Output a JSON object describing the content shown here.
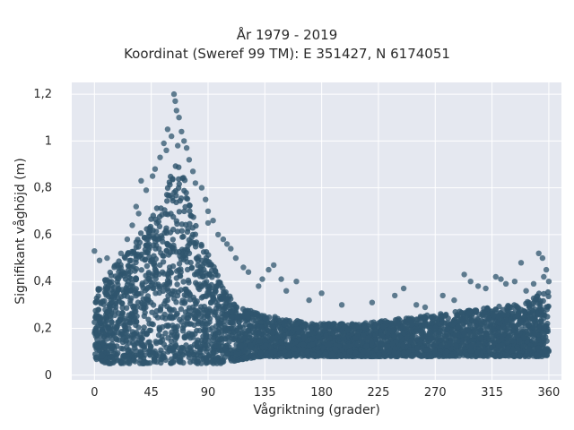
{
  "chart_data": {
    "type": "scatter",
    "title_line1": "År 1979 - 2019",
    "title_line2": "Koordinat (Sweref 99 TM): E 351427, N 6174051",
    "xlabel": "Vågriktning (grader)",
    "ylabel": "Signifikant våghöjd (m)",
    "xlim": [
      -18,
      370
    ],
    "ylim": [
      -0.02,
      1.25
    ],
    "x_ticks": [
      0,
      45,
      90,
      135,
      180,
      225,
      270,
      315,
      360
    ],
    "x_tick_labels": [
      "0",
      "45",
      "90",
      "135",
      "180",
      "225",
      "270",
      "315",
      "360"
    ],
    "y_ticks": [
      0,
      0.2,
      0.4,
      0.6,
      0.8,
      1.0,
      1.2
    ],
    "y_tick_labels": [
      "0",
      "0,2",
      "0,4",
      "0,6",
      "0,8",
      "1",
      "1,2"
    ],
    "grid": true,
    "marker_color": "#2f566e",
    "background_color": "#e5e8f0",
    "envelope_x": [
      0,
      5,
      10,
      20,
      30,
      40,
      50,
      55,
      60,
      65,
      70,
      75,
      80,
      85,
      90,
      95,
      100,
      105,
      110,
      120,
      135,
      150,
      180,
      210,
      240,
      270,
      300,
      330,
      345,
      350,
      355,
      360
    ],
    "envelope_ymin": [
      0.07,
      0.06,
      0.05,
      0.05,
      0.05,
      0.05,
      0.05,
      0.05,
      0.05,
      0.05,
      0.05,
      0.05,
      0.05,
      0.05,
      0.05,
      0.05,
      0.05,
      0.06,
      0.06,
      0.07,
      0.08,
      0.08,
      0.08,
      0.08,
      0.08,
      0.08,
      0.08,
      0.08,
      0.08,
      0.08,
      0.08,
      0.08
    ],
    "envelope_ymax": [
      0.38,
      0.4,
      0.42,
      0.5,
      0.56,
      0.65,
      0.72,
      0.78,
      0.85,
      0.9,
      0.88,
      0.76,
      0.65,
      0.58,
      0.52,
      0.46,
      0.4,
      0.35,
      0.32,
      0.28,
      0.26,
      0.24,
      0.22,
      0.22,
      0.24,
      0.26,
      0.28,
      0.3,
      0.32,
      0.34,
      0.36,
      0.36
    ],
    "outliers": [
      {
        "x": 63,
        "y": 1.2
      },
      {
        "x": 64,
        "y": 1.17
      },
      {
        "x": 65,
        "y": 1.13
      },
      {
        "x": 67,
        "y": 1.1
      },
      {
        "x": 58,
        "y": 1.05
      },
      {
        "x": 69,
        "y": 1.04
      },
      {
        "x": 61,
        "y": 1.02
      },
      {
        "x": 71,
        "y": 1.0
      },
      {
        "x": 55,
        "y": 0.99
      },
      {
        "x": 66,
        "y": 0.98
      },
      {
        "x": 73,
        "y": 0.97
      },
      {
        "x": 57,
        "y": 0.96
      },
      {
        "x": 52,
        "y": 0.93
      },
      {
        "x": 75,
        "y": 0.92
      },
      {
        "x": 48,
        "y": 0.88
      },
      {
        "x": 78,
        "y": 0.87
      },
      {
        "x": 46,
        "y": 0.85
      },
      {
        "x": 37,
        "y": 0.83
      },
      {
        "x": 80,
        "y": 0.82
      },
      {
        "x": 85,
        "y": 0.8
      },
      {
        "x": 41,
        "y": 0.79
      },
      {
        "x": 88,
        "y": 0.75
      },
      {
        "x": 33,
        "y": 0.72
      },
      {
        "x": 90,
        "y": 0.7
      },
      {
        "x": 35,
        "y": 0.69
      },
      {
        "x": 94,
        "y": 0.66
      },
      {
        "x": 90,
        "y": 0.65
      },
      {
        "x": 30,
        "y": 0.64
      },
      {
        "x": 98,
        "y": 0.6
      },
      {
        "x": 102,
        "y": 0.58
      },
      {
        "x": 26,
        "y": 0.58
      },
      {
        "x": 105,
        "y": 0.56
      },
      {
        "x": 108,
        "y": 0.54
      },
      {
        "x": 21,
        "y": 0.52
      },
      {
        "x": 112,
        "y": 0.5
      },
      {
        "x": 10,
        "y": 0.5
      },
      {
        "x": 0,
        "y": 0.53
      },
      {
        "x": 4,
        "y": 0.49
      },
      {
        "x": 118,
        "y": 0.46
      },
      {
        "x": 122,
        "y": 0.44
      },
      {
        "x": 142,
        "y": 0.47
      },
      {
        "x": 138,
        "y": 0.45
      },
      {
        "x": 133,
        "y": 0.41
      },
      {
        "x": 148,
        "y": 0.41
      },
      {
        "x": 160,
        "y": 0.4
      },
      {
        "x": 130,
        "y": 0.38
      },
      {
        "x": 152,
        "y": 0.36
      },
      {
        "x": 180,
        "y": 0.35
      },
      {
        "x": 170,
        "y": 0.32
      },
      {
        "x": 196,
        "y": 0.3
      },
      {
        "x": 220,
        "y": 0.31
      },
      {
        "x": 245,
        "y": 0.37
      },
      {
        "x": 238,
        "y": 0.34
      },
      {
        "x": 255,
        "y": 0.3
      },
      {
        "x": 262,
        "y": 0.29
      },
      {
        "x": 276,
        "y": 0.34
      },
      {
        "x": 285,
        "y": 0.32
      },
      {
        "x": 293,
        "y": 0.43
      },
      {
        "x": 298,
        "y": 0.4
      },
      {
        "x": 304,
        "y": 0.38
      },
      {
        "x": 310,
        "y": 0.37
      },
      {
        "x": 318,
        "y": 0.42
      },
      {
        "x": 322,
        "y": 0.41
      },
      {
        "x": 326,
        "y": 0.39
      },
      {
        "x": 333,
        "y": 0.4
      },
      {
        "x": 338,
        "y": 0.48
      },
      {
        "x": 342,
        "y": 0.36
      },
      {
        "x": 352,
        "y": 0.52
      },
      {
        "x": 355,
        "y": 0.5
      },
      {
        "x": 358,
        "y": 0.45
      },
      {
        "x": 356,
        "y": 0.42
      },
      {
        "x": 348,
        "y": 0.39
      },
      {
        "x": 360,
        "y": 0.4
      }
    ]
  }
}
